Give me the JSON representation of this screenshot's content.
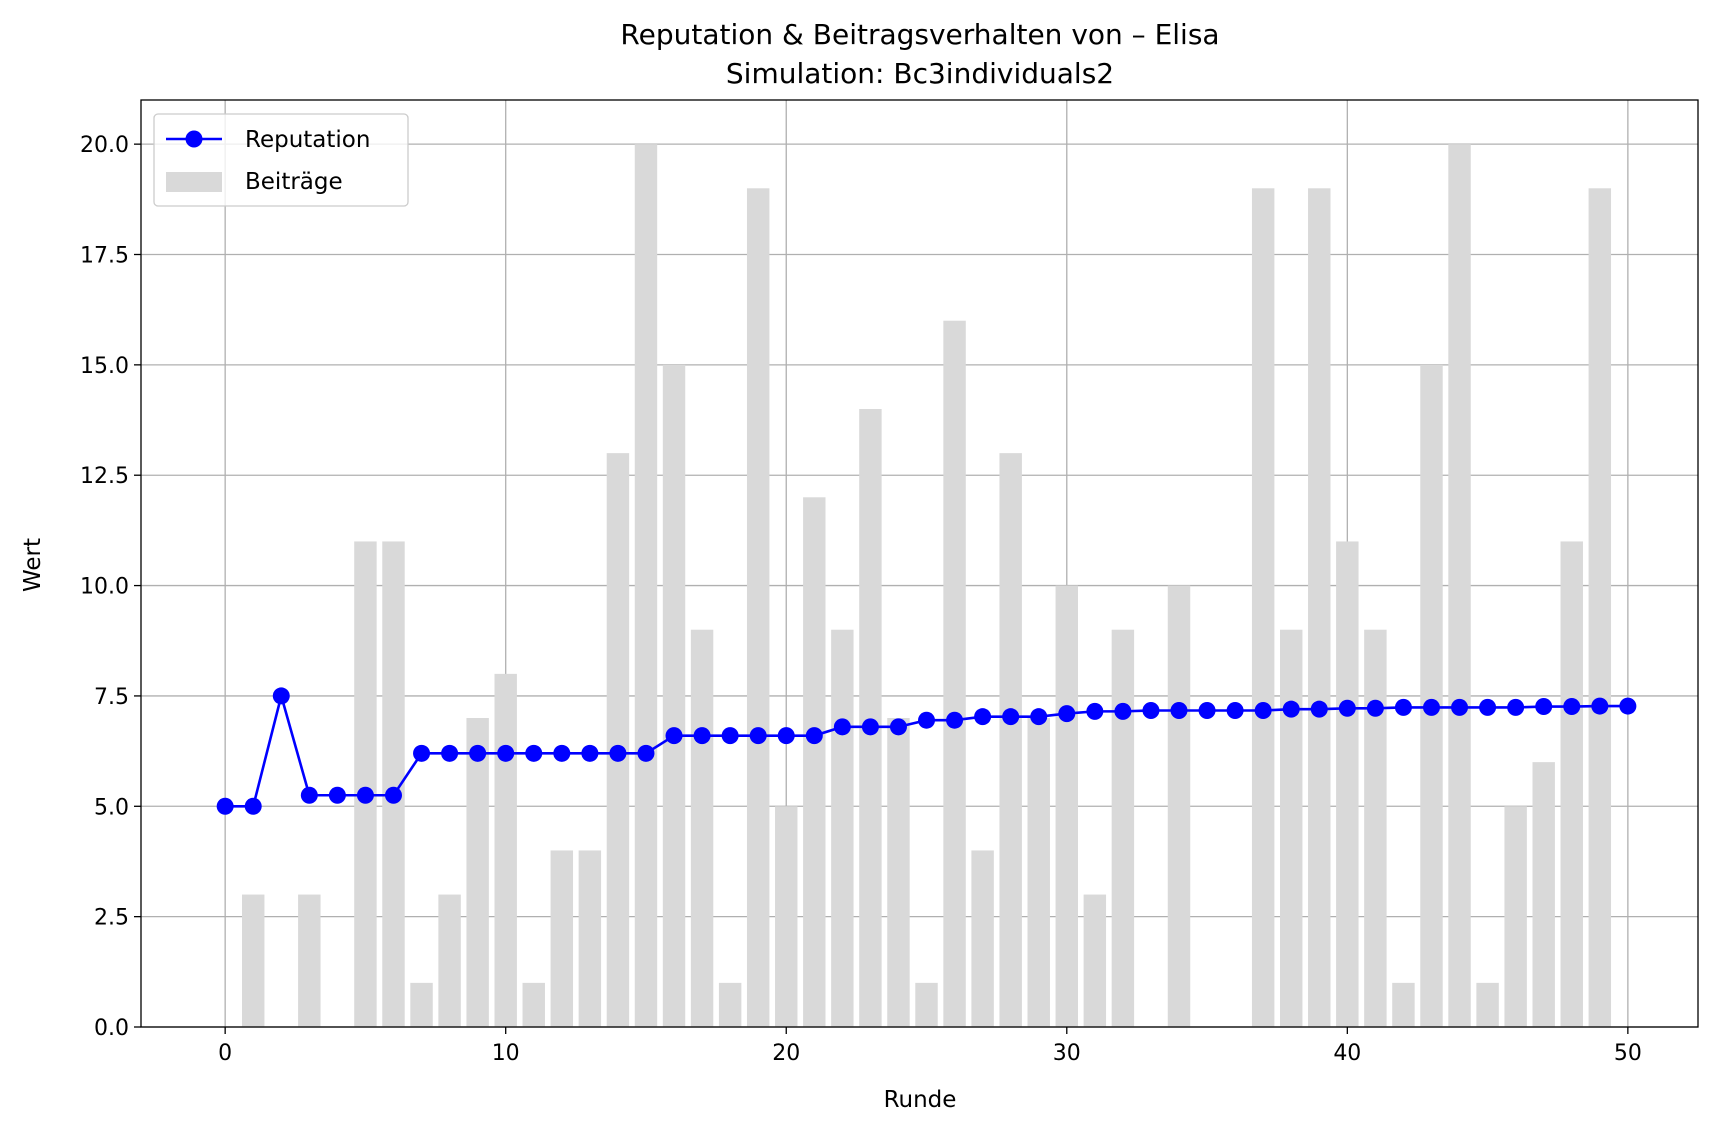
{
  "chart_data": {
    "type": "bar+line",
    "title": "Reputation & Beitragsverhalten von – Elisa",
    "subtitle": "Simulation: Bc3individuals2",
    "xlabel": "Runde",
    "ylabel": "Wert",
    "xlim": [
      -3,
      52.5
    ],
    "ylim": [
      0,
      21
    ],
    "x_ticks": [
      "0",
      "10",
      "20",
      "30",
      "40",
      "50"
    ],
    "y_ticks": [
      "0.0",
      "2.5",
      "5.0",
      "7.5",
      "10.0",
      "12.5",
      "15.0",
      "17.5",
      "20.0"
    ],
    "grid": true,
    "legend_position": "upper-left",
    "x": [
      0,
      1,
      2,
      3,
      4,
      5,
      6,
      7,
      8,
      9,
      10,
      11,
      12,
      13,
      14,
      15,
      16,
      17,
      18,
      19,
      20,
      21,
      22,
      23,
      24,
      25,
      26,
      27,
      28,
      29,
      30,
      31,
      32,
      33,
      34,
      35,
      36,
      37,
      38,
      39,
      40,
      41,
      42,
      43,
      44,
      45,
      46,
      47,
      48,
      49,
      50
    ],
    "series": [
      {
        "name": "Reputation",
        "kind": "line",
        "color": "#0000ff",
        "values": [
          5.0,
          5.0,
          7.5,
          5.25,
          5.25,
          5.25,
          5.25,
          6.2,
          6.2,
          6.2,
          6.2,
          6.2,
          6.2,
          6.2,
          6.2,
          6.2,
          6.6,
          6.6,
          6.6,
          6.6,
          6.6,
          6.6,
          6.8,
          6.8,
          6.8,
          6.95,
          6.95,
          7.03,
          7.03,
          7.03,
          7.1,
          7.15,
          7.15,
          7.17,
          7.17,
          7.17,
          7.17,
          7.17,
          7.2,
          7.2,
          7.22,
          7.22,
          7.24,
          7.24,
          7.24,
          7.24,
          7.24,
          7.26,
          7.26,
          7.27,
          7.27
        ]
      },
      {
        "name": "Beiträge",
        "kind": "bar",
        "color": "#d9d9d9",
        "values": [
          0,
          3,
          0,
          3,
          0,
          11,
          11,
          1,
          3,
          7,
          8,
          1,
          4,
          4,
          13,
          20,
          15,
          9,
          1,
          19,
          5,
          12,
          9,
          14,
          7,
          1,
          16,
          4,
          13,
          7,
          10,
          3,
          9,
          0,
          10,
          0,
          0,
          19,
          9,
          19,
          11,
          9,
          1,
          15,
          20,
          1,
          5,
          6,
          11,
          19,
          0
        ]
      }
    ]
  }
}
